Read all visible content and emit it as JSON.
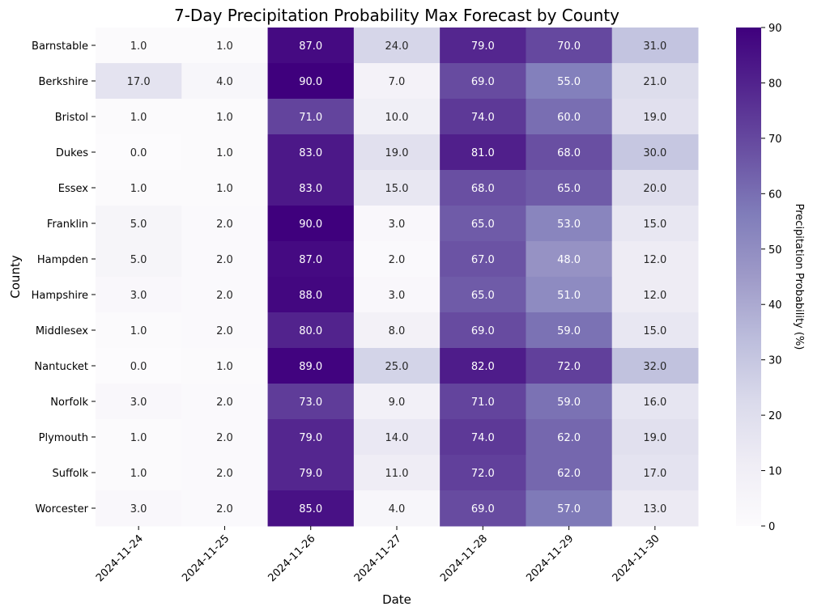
{
  "chart_data": {
    "type": "heatmap",
    "title": "7-Day Precipitation Probability Max Forecast by County",
    "xlabel": "Date",
    "ylabel": "County",
    "colorbar_label": "Precipitation Probability (%)",
    "colormap": "Purples",
    "color_low": "#fcfbfd",
    "color_high": "#3f007d",
    "vmin": 0,
    "vmax": 90,
    "colorbar_ticks": [
      0,
      10,
      20,
      30,
      40,
      50,
      60,
      70,
      80,
      90
    ],
    "x": [
      "2024-11-24",
      "2024-11-25",
      "2024-11-26",
      "2024-11-27",
      "2024-11-28",
      "2024-11-29",
      "2024-11-30"
    ],
    "y": [
      "Barnstable",
      "Berkshire",
      "Bristol",
      "Dukes",
      "Essex",
      "Franklin",
      "Hampden",
      "Hampshire",
      "Middlesex",
      "Nantucket",
      "Norfolk",
      "Plymouth",
      "Suffolk",
      "Worcester"
    ],
    "values": [
      [
        1.0,
        1.0,
        87.0,
        24.0,
        79.0,
        70.0,
        31.0
      ],
      [
        17.0,
        4.0,
        90.0,
        7.0,
        69.0,
        55.0,
        21.0
      ],
      [
        1.0,
        1.0,
        71.0,
        10.0,
        74.0,
        60.0,
        19.0
      ],
      [
        0.0,
        1.0,
        83.0,
        19.0,
        81.0,
        68.0,
        30.0
      ],
      [
        1.0,
        1.0,
        83.0,
        15.0,
        68.0,
        65.0,
        20.0
      ],
      [
        5.0,
        2.0,
        90.0,
        3.0,
        65.0,
        53.0,
        15.0
      ],
      [
        5.0,
        2.0,
        87.0,
        2.0,
        67.0,
        48.0,
        12.0
      ],
      [
        3.0,
        2.0,
        88.0,
        3.0,
        65.0,
        51.0,
        12.0
      ],
      [
        1.0,
        2.0,
        80.0,
        8.0,
        69.0,
        59.0,
        15.0
      ],
      [
        0.0,
        1.0,
        89.0,
        25.0,
        82.0,
        72.0,
        32.0
      ],
      [
        3.0,
        2.0,
        73.0,
        9.0,
        71.0,
        59.0,
        16.0
      ],
      [
        1.0,
        2.0,
        79.0,
        14.0,
        74.0,
        62.0,
        19.0
      ],
      [
        1.0,
        2.0,
        79.0,
        11.0,
        72.0,
        62.0,
        17.0
      ],
      [
        3.0,
        2.0,
        85.0,
        4.0,
        69.0,
        57.0,
        13.0
      ]
    ]
  }
}
